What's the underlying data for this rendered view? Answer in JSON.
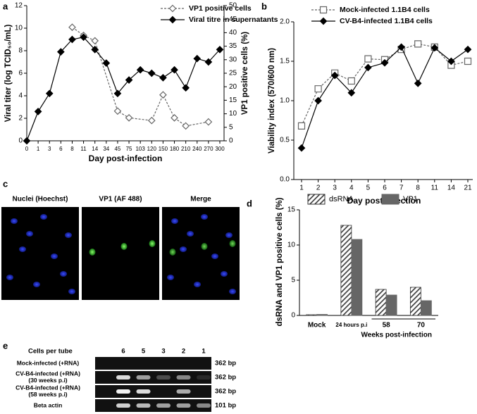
{
  "chart_data": [
    {
      "type": "line",
      "label": "a",
      "x_label": "Day post-infection",
      "y_label": "Viral titer (log TCID₅₀/mL)",
      "y2_label": "VP1 positive cells (%)",
      "categories": [
        "0",
        "1",
        "3",
        "6",
        "8",
        "11",
        "14",
        "34",
        "45",
        "75",
        "103",
        "120",
        "150",
        "180",
        "210",
        "240",
        "270",
        "300"
      ],
      "series": [
        {
          "name": "VP1 positive cells",
          "color": "#666666",
          "marker": "open-diamond",
          "dashed": true,
          "axis": "y2",
          "x": [
            "8",
            "11",
            "14",
            "45",
            "75",
            "120",
            "150",
            "180",
            "210",
            "270"
          ],
          "values": [
            42,
            39,
            37,
            11,
            8.5,
            7.5,
            17,
            8.5,
            5.5,
            7
          ]
        },
        {
          "name": "Viral titre in supernatants",
          "color": "#000000",
          "marker": "diamond",
          "dashed": false,
          "values": [
            0,
            2.6,
            4.2,
            7.9,
            9.0,
            9.2,
            8.1,
            6.9,
            4.2,
            5.4,
            6.3,
            6.0,
            5.6,
            6.3,
            4.7,
            7.3,
            7.0,
            8.1
          ]
        }
      ],
      "ylim": [
        0,
        12
      ],
      "yticks": [
        0,
        2,
        4,
        6,
        8,
        10,
        12
      ],
      "y2lim": [
        0,
        50
      ],
      "y2ticks": [
        0,
        5,
        10,
        15,
        20,
        25,
        30,
        35,
        40,
        45,
        50
      ]
    },
    {
      "type": "line",
      "label": "b",
      "x_label": "Day post-infection",
      "y_label": "Viability index (570/600 nm)",
      "categories": [
        "1",
        "2",
        "3",
        "4",
        "5",
        "6",
        "7",
        "8",
        "11",
        "14",
        "21"
      ],
      "series": [
        {
          "name": "Mock-infected 1.1B4 cells",
          "color": "#666666",
          "marker": "open-square",
          "dashed": true,
          "values": [
            0.68,
            1.15,
            1.35,
            1.25,
            1.53,
            1.52,
            1.65,
            1.72,
            1.68,
            1.45,
            1.5
          ]
        },
        {
          "name": "CV-B4-infected 1.1B4 cells",
          "color": "#000000",
          "marker": "diamond",
          "dashed": false,
          "values": [
            0.4,
            1.0,
            1.32,
            1.1,
            1.42,
            1.48,
            1.68,
            1.22,
            1.67,
            1.5,
            1.65
          ]
        }
      ],
      "ylim": [
        0,
        2
      ],
      "yticks": [
        {
          "value": 0,
          "label": "0.0"
        },
        0.5,
        {
          "value": 1,
          "label": "1.0"
        },
        1.5,
        {
          "value": 2,
          "label": "2.0"
        }
      ]
    },
    {
      "type": "bar",
      "label": "d",
      "y_label": "dsRNA and VP1 positive cells (%)",
      "group_label": "Weeks post-infection",
      "categories": [
        "Mock",
        "24 hours p.i",
        "58",
        "70"
      ],
      "series": [
        {
          "name": "dsRNA",
          "color": "#333333",
          "pattern": "hatched",
          "values": [
            0.1,
            12.8,
            3.7,
            4.0
          ]
        },
        {
          "name": "VP1",
          "color": "#666666",
          "values": [
            0.15,
            10.8,
            2.9,
            2.1
          ]
        }
      ],
      "ylim": [
        0,
        15
      ],
      "yticks": [
        0,
        5,
        10,
        15
      ]
    }
  ],
  "panel_c": {
    "label": "c",
    "titles": [
      "Nuclei (Hoechst)",
      "VP1 (AF 488)",
      "Merge"
    ]
  },
  "panel_e": {
    "label": "e",
    "header": "Cells per tube",
    "lanes": [
      "6",
      "5",
      "3",
      "2",
      "1"
    ],
    "rows": [
      {
        "label": [
          "Mock-infected (+RNA)"
        ],
        "size": "362 bp"
      },
      {
        "label": [
          "CV-B4-infected (+RNA)",
          "(30 weeks p.i)"
        ],
        "size": "362 bp"
      },
      {
        "label": [
          "CV-B4-infected (+RNA)",
          "(58 weeks p.i)"
        ],
        "size": "362 bp"
      },
      {
        "label": [
          "Beta actin"
        ],
        "size": "101 bp"
      }
    ]
  }
}
